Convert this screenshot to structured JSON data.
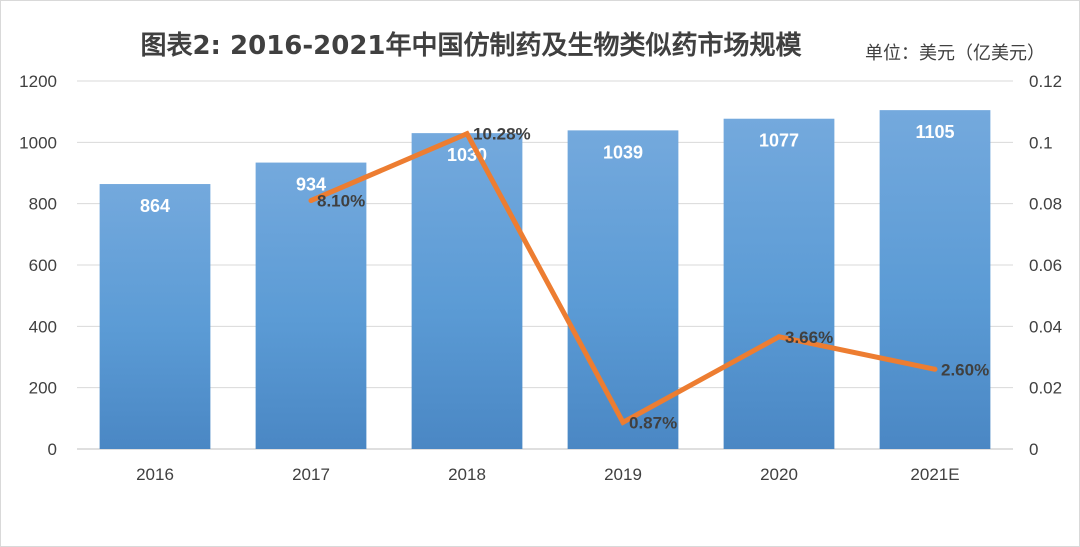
{
  "chart_data": {
    "type": "bar",
    "title": "图表2: 2016-2021年中国仿制药及生物类似药市场规模",
    "unit": "单位：美元（亿美元）",
    "categories": [
      "2016",
      "2017",
      "2018",
      "2019",
      "2020",
      "2021E"
    ],
    "series": [
      {
        "type": "bar",
        "axis": "left",
        "values": [
          864,
          934,
          1030,
          1039,
          1077,
          1105
        ],
        "labels": [
          "864",
          "934",
          "1030",
          "1039",
          "1077",
          "1105"
        ],
        "color": "#5b9bd5"
      },
      {
        "type": "line",
        "axis": "right",
        "values": [
          null,
          0.081,
          0.1028,
          0.0087,
          0.0366,
          0.026
        ],
        "labels": [
          null,
          "8.10%",
          "10.28%",
          "0.87%",
          "3.66%",
          "2.60%"
        ],
        "color": "#ed7d31"
      }
    ],
    "y_left": {
      "min": 0,
      "max": 1200,
      "ticks": [
        "0",
        "200",
        "400",
        "600",
        "800",
        "1000",
        "1200"
      ]
    },
    "y_right": {
      "min": 0,
      "max": 0.12,
      "ticks": [
        "0",
        "0.02",
        "0.04",
        "0.06",
        "0.08",
        "0.1",
        "0.12"
      ]
    },
    "grid": true,
    "legend": "none"
  }
}
